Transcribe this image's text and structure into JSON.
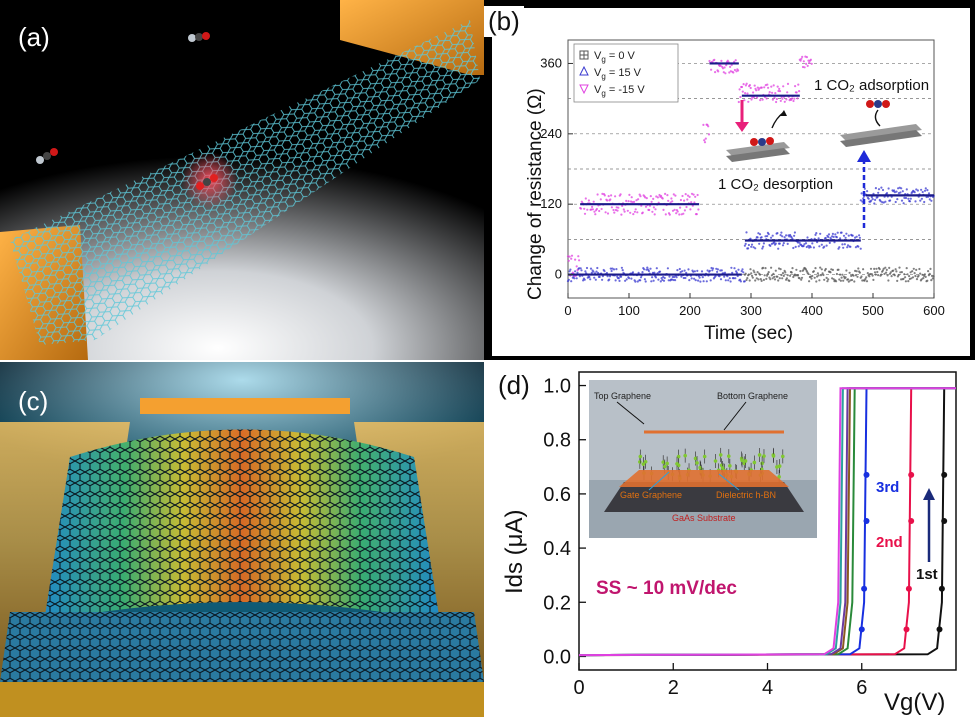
{
  "panels": {
    "a": {
      "label": "(a)"
    },
    "b": {
      "label": "(b)"
    },
    "c": {
      "label": "(c)"
    },
    "d": {
      "label": "(d)"
    }
  },
  "colors": {
    "vg0": "#555555",
    "vg15": "#3a3ad0",
    "vgm15": "#e040e0",
    "fit": "#1a1a8a",
    "arrow_pink": "#e8207a",
    "arrow_blue": "#1f2ad8",
    "gate": "#e8721c",
    "first": "#111111",
    "second": "#e8104a",
    "third": "#1830e0",
    "ss_text": "#c0156e"
  },
  "chart_data": [
    {
      "type": "scatter",
      "panel": "b",
      "xlabel": "Time  (sec)",
      "ylabel": "Change of resistance (Ω)",
      "xlim": [
        0,
        600
      ],
      "ylim": [
        -40,
        400
      ],
      "x_ticks": [
        "0",
        "100",
        "200",
        "300",
        "400",
        "500",
        "600"
      ],
      "y_ticks": [
        "0",
        "120",
        "240",
        "360"
      ],
      "grid": "dashed horizontal at 0, 60, 120, 180, 240, 300, 360",
      "legend": {
        "placement": "top-left",
        "entries": [
          {
            "vg": "V",
            "sub": "g",
            "eq": "=",
            "val": "0 V"
          },
          {
            "vg": "V",
            "sub": "g",
            "eq": "=",
            "val": "15 V"
          },
          {
            "vg": "V",
            "sub": "g",
            "eq": "=",
            "val": "-15 V"
          }
        ]
      },
      "annotations": {
        "adsorption": "1 CO₂ adsorption",
        "desorption": "1 CO₂ desorption"
      },
      "series": [
        {
          "name": "Vg = 0 V",
          "segments": [
            {
              "x": [
                290,
                600
              ],
              "y": 0,
              "noise": 12
            }
          ]
        },
        {
          "name": "Vg = 15 V",
          "segments": [
            {
              "x": [
                0,
                290
              ],
              "y": 0,
              "noise": 12
            },
            {
              "x": [
                290,
                480
              ],
              "y": 58,
              "noise": 14
            },
            {
              "x": [
                480,
                600
              ],
              "y": 135,
              "noise": 14
            }
          ],
          "fit": [
            {
              "x": [
                0,
                285
              ],
              "y": 0
            },
            {
              "x": [
                290,
                480
              ],
              "y": 58
            },
            {
              "x": [
                488,
                600
              ],
              "y": 135
            }
          ]
        },
        {
          "name": "Vg = -15 V",
          "segments": [
            {
              "x": [
                0,
                20
              ],
              "y": 15,
              "noise": 18
            },
            {
              "x": [
                20,
                215
              ],
              "y": 120,
              "noise": 18
            },
            {
              "x": [
                222,
                232
              ],
              "y": 245,
              "noise": 20
            },
            {
              "x": [
                232,
                280
              ],
              "y": 355,
              "noise": 12
            },
            {
              "x": [
                280,
                380
              ],
              "y": 310,
              "noise": 16
            },
            {
              "x": [
                380,
                400
              ],
              "y": 360,
              "noise": 12
            }
          ],
          "fit": [
            {
              "x": [
                20,
                215
              ],
              "y": 120
            },
            {
              "x": [
                232,
                280
              ],
              "y": 360
            },
            {
              "x": [
                285,
                380
              ],
              "y": 305
            }
          ]
        }
      ]
    },
    {
      "type": "line",
      "panel": "d",
      "xlabel": "Vg(V)",
      "ylabel": "Ids (μA)",
      "xlim": [
        0,
        8
      ],
      "ylim": [
        -0.05,
        1.05
      ],
      "x_ticks": [
        "0",
        "2",
        "4",
        "6"
      ],
      "y_ticks": [
        "0.0",
        "0.2",
        "0.4",
        "0.6",
        "0.8",
        "1.0"
      ],
      "annotation": "SS ~ 10 mV/dec",
      "sweep_labels": [
        "1st",
        "2nd",
        "3rd"
      ],
      "inset_labels": {
        "top_graphene": "Top Graphene",
        "bottom_graphene": "Bottom Graphene",
        "gate_graphene": "Gate Graphene",
        "dielectric": "Dielectric h-BN",
        "substrate": "GaAs Substrate"
      },
      "series": [
        {
          "name": "1st",
          "switch_v": 7.75,
          "color": "#111111"
        },
        {
          "name": "2nd",
          "switch_v": 7.05,
          "color": "#e8104a"
        },
        {
          "name": "3rd",
          "switch_v": 6.1,
          "color": "#1830e0"
        },
        {
          "name": "sweep-4",
          "switch_v": 5.85,
          "color": "#2a8a3a"
        },
        {
          "name": "sweep-5",
          "switch_v": 5.75,
          "color": "#8a5a20"
        },
        {
          "name": "sweep-6",
          "switch_v": 5.7,
          "color": "#6a3aa0"
        },
        {
          "name": "sweep-7",
          "switch_v": 5.6,
          "color": "#2aa0a0"
        },
        {
          "name": "sweep-8",
          "switch_v": 5.55,
          "color": "#e040e0"
        }
      ]
    }
  ]
}
